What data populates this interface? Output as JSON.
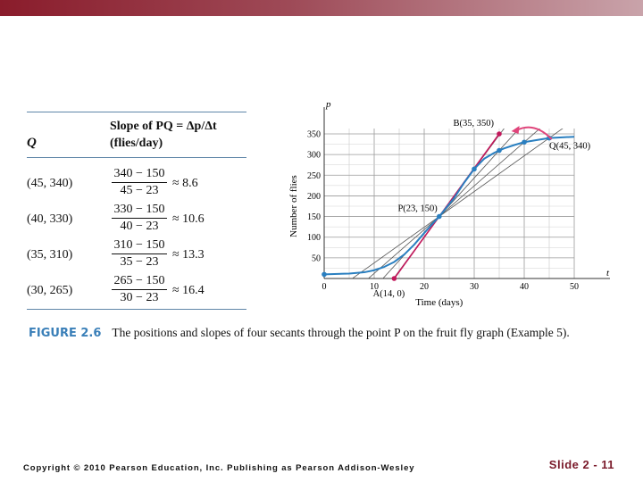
{
  "header_bar": {
    "color_left": "#8a1c2b",
    "color_right": "#c9a3aa"
  },
  "table": {
    "col_q": "Q",
    "col_slope_line1": "Slope of PQ = Δp/Δt",
    "col_slope_line2": "(flies/day)",
    "rows": [
      {
        "q": "(45, 340)",
        "num": "340 − 150",
        "den": "45 − 23",
        "approx": "≈ 8.6"
      },
      {
        "q": "(40, 330)",
        "num": "330 − 150",
        "den": "40 − 23",
        "approx": "≈ 10.6"
      },
      {
        "q": "(35, 310)",
        "num": "310 − 150",
        "den": "35 − 23",
        "approx": "≈ 13.3"
      },
      {
        "q": "(30, 265)",
        "num": "265 − 150",
        "den": "30 − 23",
        "approx": "≈ 16.4"
      }
    ]
  },
  "chart_data": {
    "type": "line",
    "xlabel": "Time (days)",
    "ylabel": "Number of flies",
    "x_axis_symbol": "t",
    "y_axis_symbol": "p",
    "xlim": [
      0,
      50
    ],
    "ylim": [
      0,
      350
    ],
    "x_ticks": [
      0,
      10,
      20,
      30,
      40,
      50
    ],
    "y_ticks": [
      50,
      100,
      150,
      200,
      250,
      300,
      350
    ],
    "x_tick_labels": [
      "0",
      "10",
      "20",
      "30",
      "40",
      "50"
    ],
    "y_tick_labels": [
      "50",
      "100",
      "150",
      "200",
      "250",
      "300",
      "350"
    ],
    "grid": true,
    "curve": {
      "x": [
        0,
        5,
        8,
        10,
        12,
        14,
        16,
        18,
        20,
        22,
        23,
        24,
        26,
        28,
        30,
        32,
        34,
        35,
        36,
        38,
        40,
        42,
        45,
        48,
        50
      ],
      "y": [
        10,
        12,
        15,
        20,
        28,
        40,
        58,
        82,
        110,
        137,
        150,
        165,
        195,
        232,
        265,
        290,
        304,
        310,
        315,
        323,
        330,
        334,
        340,
        342,
        343
      ],
      "color": "#2a7fc0"
    },
    "curve_points": [
      {
        "x": 0,
        "y": 10
      },
      {
        "x": 23,
        "y": 150
      },
      {
        "x": 30,
        "y": 265
      },
      {
        "x": 35,
        "y": 310
      },
      {
        "x": 40,
        "y": 330
      },
      {
        "x": 45,
        "y": 340
      }
    ],
    "secants": [
      {
        "x1": 23,
        "y1": 150,
        "x2": 45,
        "y2": 340
      },
      {
        "x1": 23,
        "y1": 150,
        "x2": 40,
        "y2": 330
      },
      {
        "x1": 23,
        "y1": 150,
        "x2": 35,
        "y2": 310
      },
      {
        "x1": 23,
        "y1": 150,
        "x2": 30,
        "y2": 265
      }
    ],
    "tangent": {
      "x1": 14,
      "y1": 0,
      "x2": 35,
      "y2": 350,
      "color": "#c2185b"
    },
    "tangent_points": [
      {
        "x": 14,
        "y": 0
      },
      {
        "x": 35,
        "y": 350
      }
    ],
    "annotations": [
      {
        "text": "B(35, 350)",
        "x": 35,
        "y": 350
      },
      {
        "text": "Q(45, 340)",
        "x": 45,
        "y": 340
      },
      {
        "text": "P(23, 150)",
        "x": 23,
        "y": 150
      },
      {
        "text": "A(14, 0)",
        "x": 14,
        "y": 0
      }
    ],
    "arrow_color": "#e0457b"
  },
  "caption": {
    "figure_label": "FIGURE 2.6",
    "text": "The positions and slopes of four secants through the point P on the fruit fly graph (Example 5)."
  },
  "footer": {
    "copyright": "Copyright © 2010 Pearson Education, Inc. Publishing as Pearson Addison-Wesley",
    "slide_number": "Slide 2 - 11"
  }
}
